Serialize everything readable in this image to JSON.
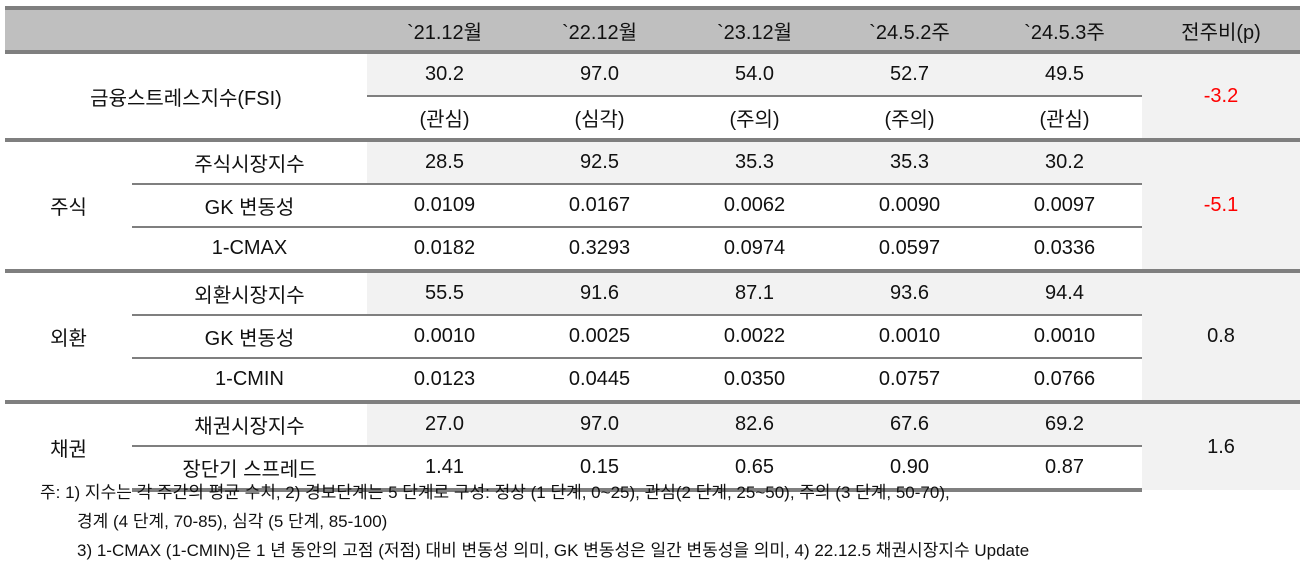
{
  "header": {
    "blank": "",
    "columns": [
      "`21.12월",
      "`22.12월",
      "`23.12월",
      "`24.5.2주",
      "`24.5.3주"
    ],
    "change": "전주비(p)"
  },
  "fsi": {
    "label": "금융스트레스지수(FSI)",
    "values": [
      "30.2",
      "97.0",
      "54.0",
      "52.7",
      "49.5"
    ],
    "levels": [
      "(관심)",
      "(심각)",
      "(주의)",
      "(주의)",
      "(관심)"
    ],
    "change": "-3.2"
  },
  "groups": [
    {
      "name": "주식",
      "change": "-5.1",
      "rows": [
        {
          "label": "주식시장지수",
          "values": [
            "28.5",
            "92.5",
            "35.3",
            "35.3",
            "30.2"
          ]
        },
        {
          "label": "GK 변동성",
          "values": [
            "0.0109",
            "0.0167",
            "0.0062",
            "0.0090",
            "0.0097"
          ]
        },
        {
          "label": "1-CMAX",
          "values": [
            "0.0182",
            "0.3293",
            "0.0974",
            "0.0597",
            "0.0336"
          ]
        }
      ]
    },
    {
      "name": "외환",
      "change": "0.8",
      "rows": [
        {
          "label": "외환시장지수",
          "values": [
            "55.5",
            "91.6",
            "87.1",
            "93.6",
            "94.4"
          ]
        },
        {
          "label": "GK 변동성",
          "values": [
            "0.0010",
            "0.0025",
            "0.0022",
            "0.0010",
            "0.0010"
          ]
        },
        {
          "label": "1-CMIN",
          "values": [
            "0.0123",
            "0.0445",
            "0.0350",
            "0.0757",
            "0.0766"
          ]
        }
      ]
    },
    {
      "name": "채권",
      "change": "1.6",
      "rows": [
        {
          "label": "채권시장지수",
          "values": [
            "27.0",
            "97.0",
            "82.6",
            "67.6",
            "69.2"
          ]
        },
        {
          "label": "장단기 스프레드",
          "values": [
            "1.41",
            "0.15",
            "0.65",
            "0.90",
            "0.87"
          ]
        }
      ]
    }
  ],
  "notes": [
    "주: 1) 지수는 각 주간의 평균 수치, 2) 경보단계는 5 단계로 구성: 정상 (1 단계, 0~25), 관심(2 단계, 25~50), 주의 (3 단계, 50-70),",
    "경계 (4 단계, 70-85), 심각 (5 단계, 85-100)",
    "3) 1-CMAX (1-CMIN)은 1 년 동안의 고점 (저점) 대비 변동성 의미, GK 변동성은 일간 변동성을 의미, 4) 22.12.5 채권시장지수 Update"
  ],
  "colors": {
    "negative": "#ff0000",
    "header_bg": "#bfbfbf",
    "shade": "#f2f2f2",
    "rule": "#7f7f7f"
  }
}
